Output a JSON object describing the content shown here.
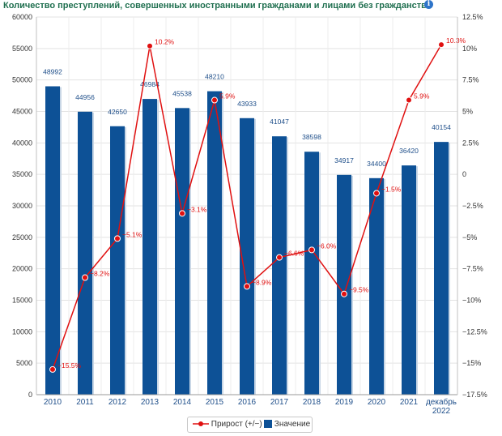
{
  "title": "Количество преступлений, совершенных иностранными гражданами и лицами без гражданства",
  "info_icon": "info-icon",
  "chart_data": {
    "type": "bar",
    "categories": [
      "2010",
      "2011",
      "2012",
      "2013",
      "2014",
      "2015",
      "2016",
      "2017",
      "2018",
      "2019",
      "2020",
      "2021",
      "декабрь 2022"
    ],
    "series": [
      {
        "name": "Значение",
        "type": "bar",
        "axis": "left",
        "color": "#0d5196",
        "values": [
          48992,
          44956,
          42650,
          46984,
          45538,
          48210,
          43933,
          41047,
          38598,
          34917,
          34400,
          36420,
          40154
        ]
      },
      {
        "name": "Прирост (+/−)",
        "type": "line",
        "axis": "right",
        "color": "#e01010",
        "values": [
          -15.5,
          -8.2,
          -5.1,
          10.2,
          -3.1,
          5.9,
          -8.9,
          -6.6,
          -6.0,
          -9.5,
          -1.5,
          5.9,
          10.3
        ],
        "labels": [
          "−15.5%",
          "−8.2%",
          "−5.1%",
          "10.2%",
          "−3.1%",
          "5.9%",
          "−8.9%",
          "−6.6%",
          "−6.0%",
          "−9.5%",
          "−1.5%",
          "5.9%",
          "10.3%"
        ]
      }
    ],
    "y_left": {
      "range": [
        0,
        60000
      ],
      "ticks": [
        "0",
        "5000",
        "10000",
        "15000",
        "20000",
        "25000",
        "30000",
        "35000",
        "40000",
        "45000",
        "50000",
        "55000",
        "60000"
      ]
    },
    "y_right": {
      "range": [
        -17.5,
        12.5
      ],
      "ticks": [
        "12.5%",
        "10%",
        "7.5%",
        "5%",
        "2.5%",
        "0",
        "−2.5%",
        "−5%",
        "−7.5%",
        "−10%",
        "−12.5%",
        "−15%",
        "−17.5%"
      ]
    },
    "grid": true,
    "legend_position": "bottom"
  },
  "legend": {
    "line_label": "Прирост (+/−)",
    "bar_label": "Значение"
  }
}
